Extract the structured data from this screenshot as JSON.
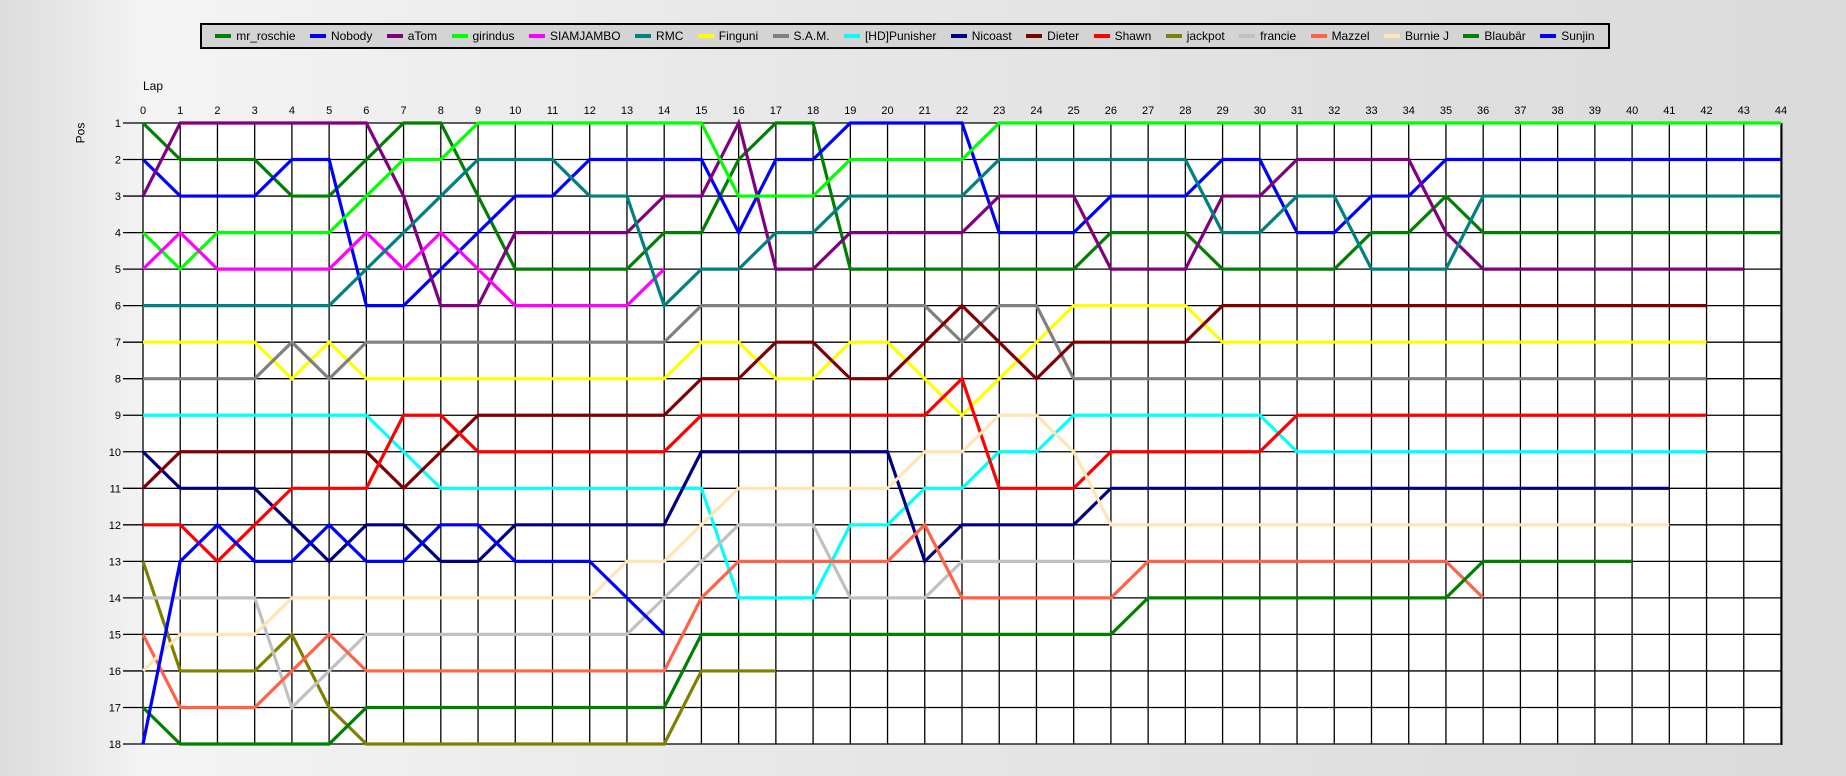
{
  "chart_data": {
    "type": "line",
    "xlabel": "Lap",
    "ylabel": "Pos",
    "x_ticks": [
      0,
      1,
      2,
      3,
      4,
      5,
      6,
      7,
      8,
      9,
      10,
      11,
      12,
      13,
      14,
      15,
      16,
      17,
      18,
      19,
      20,
      21,
      22,
      23,
      24,
      25,
      26,
      27,
      28,
      29,
      30,
      31,
      32,
      33,
      34,
      35,
      36,
      37,
      38,
      39,
      40,
      41,
      42,
      43,
      44
    ],
    "y_ticks": [
      1,
      2,
      3,
      4,
      5,
      6,
      7,
      8,
      9,
      10,
      11,
      12,
      13,
      14,
      15,
      16,
      17,
      18
    ],
    "xlim": [
      0,
      44
    ],
    "ylim": [
      18,
      1
    ],
    "y_inverted": true,
    "grid": true,
    "legend_position": "top",
    "series": [
      {
        "name": "mr_roschie",
        "color": "#008000",
        "values": [
          1,
          2,
          2,
          2,
          3,
          3,
          2,
          1,
          1,
          3,
          5,
          5,
          5,
          5,
          4,
          4,
          2,
          1,
          1,
          5,
          5,
          5,
          5,
          5,
          5,
          5,
          4,
          4,
          4,
          5,
          5,
          5,
          5,
          4,
          4,
          3,
          4,
          4,
          4,
          4,
          4,
          4,
          4,
          4,
          4
        ]
      },
      {
        "name": "Nobody",
        "color": "#0000FF",
        "values": [
          2,
          3,
          3,
          3,
          2,
          2,
          6,
          6,
          5,
          4,
          3,
          3,
          2,
          2,
          2,
          2,
          4,
          2,
          2,
          1,
          1,
          1,
          1,
          4,
          4,
          4,
          3,
          3,
          3,
          2,
          2,
          4,
          4,
          3,
          3,
          2,
          2,
          2,
          2,
          2,
          2,
          2,
          2,
          2,
          2
        ]
      },
      {
        "name": "aTom",
        "color": "#800080",
        "values": [
          3,
          1,
          1,
          1,
          1,
          1,
          1,
          3,
          6,
          6,
          4,
          4,
          4,
          4,
          3,
          3,
          1,
          5,
          5,
          4,
          4,
          4,
          4,
          3,
          3,
          3,
          5,
          5,
          5,
          3,
          3,
          2,
          2,
          2,
          2,
          4,
          5,
          5,
          5,
          5,
          5,
          5,
          5,
          5
        ]
      },
      {
        "name": "girindus",
        "color": "#00FF00",
        "values": [
          4,
          5,
          4,
          4,
          4,
          4,
          3,
          2,
          2,
          1,
          1,
          1,
          1,
          1,
          1,
          1,
          3,
          3,
          3,
          2,
          2,
          2,
          2,
          1,
          1,
          1,
          1,
          1,
          1,
          1,
          1,
          1,
          1,
          1,
          1,
          1,
          1,
          1,
          1,
          1,
          1,
          1,
          1,
          1,
          1
        ]
      },
      {
        "name": "SIAMJAMBO",
        "color": "#FF00FF",
        "values": [
          5,
          4,
          5,
          5,
          5,
          5,
          4,
          5,
          4,
          5,
          6,
          6,
          6,
          6,
          5
        ]
      },
      {
        "name": "RMC",
        "color": "#008080",
        "values": [
          6,
          6,
          6,
          6,
          6,
          6,
          5,
          4,
          3,
          2,
          2,
          2,
          3,
          3,
          6,
          5,
          5,
          4,
          4,
          3,
          3,
          3,
          3,
          2,
          2,
          2,
          2,
          2,
          2,
          4,
          4,
          3,
          3,
          5,
          5,
          5,
          3,
          3,
          3,
          3,
          3,
          3,
          3,
          3,
          3
        ]
      },
      {
        "name": "Finguni",
        "color": "#FFFF00",
        "values": [
          7,
          7,
          7,
          7,
          8,
          7,
          8,
          8,
          8,
          8,
          8,
          8,
          8,
          8,
          8,
          7,
          7,
          8,
          8,
          7,
          7,
          8,
          9,
          8,
          7,
          6,
          6,
          6,
          6,
          7,
          7,
          7,
          7,
          7,
          7,
          7,
          7,
          7,
          7,
          7,
          7,
          7,
          7
        ]
      },
      {
        "name": "S.A.M.",
        "color": "#808080",
        "values": [
          8,
          8,
          8,
          8,
          7,
          8,
          7,
          7,
          7,
          7,
          7,
          7,
          7,
          7,
          7,
          6,
          6,
          6,
          6,
          6,
          6,
          6,
          7,
          6,
          6,
          8,
          8,
          8,
          8,
          8,
          8,
          8,
          8,
          8,
          8,
          8,
          8,
          8,
          8,
          8,
          8,
          8,
          8
        ]
      },
      {
        "name": "[HD]Punisher",
        "color": "#00FFFF",
        "values": [
          9,
          9,
          9,
          9,
          9,
          9,
          9,
          10,
          11,
          11,
          11,
          11,
          11,
          11,
          11,
          11,
          14,
          14,
          14,
          12,
          12,
          11,
          11,
          10,
          10,
          9,
          9,
          9,
          9,
          9,
          9,
          10,
          10,
          10,
          10,
          10,
          10,
          10,
          10,
          10,
          10,
          10,
          10
        ]
      },
      {
        "name": "Nicoast",
        "color": "#000080",
        "values": [
          10,
          11,
          11,
          11,
          12,
          13,
          12,
          12,
          13,
          13,
          12,
          12,
          12,
          12,
          12,
          10,
          10,
          10,
          10,
          10,
          10,
          13,
          12,
          12,
          12,
          12,
          11,
          11,
          11,
          11,
          11,
          11,
          11,
          11,
          11,
          11,
          11,
          11,
          11,
          11,
          11,
          11
        ]
      },
      {
        "name": "Dieter",
        "color": "#800000",
        "values": [
          11,
          10,
          10,
          10,
          10,
          10,
          10,
          11,
          10,
          9,
          9,
          9,
          9,
          9,
          9,
          8,
          8,
          7,
          7,
          8,
          8,
          7,
          6,
          7,
          8,
          7,
          7,
          7,
          7,
          6,
          6,
          6,
          6,
          6,
          6,
          6,
          6,
          6,
          6,
          6,
          6,
          6,
          6
        ]
      },
      {
        "name": "Shawn",
        "color": "#FF0000",
        "values": [
          12,
          12,
          13,
          12,
          11,
          11,
          11,
          9,
          9,
          10,
          10,
          10,
          10,
          10,
          10,
          9,
          9,
          9,
          9,
          9,
          9,
          9,
          8,
          11,
          11,
          11,
          10,
          10,
          10,
          10,
          10,
          9,
          9,
          9,
          9,
          9,
          9,
          9,
          9,
          9,
          9,
          9,
          9
        ]
      },
      {
        "name": "jackpot",
        "color": "#808000",
        "values": [
          13,
          16,
          16,
          16,
          15,
          17,
          18,
          18,
          18,
          18,
          18,
          18,
          18,
          18,
          18,
          16,
          16,
          16
        ]
      },
      {
        "name": "francie",
        "color": "#C0C0C0",
        "values": [
          14,
          14,
          14,
          14,
          17,
          16,
          15,
          15,
          15,
          15,
          15,
          15,
          15,
          15,
          14,
          13,
          12,
          12,
          12,
          14,
          14,
          14,
          13,
          13,
          13,
          13,
          13
        ]
      },
      {
        "name": "Mazzel",
        "color": "#FF6347",
        "values": [
          15,
          17,
          17,
          17,
          16,
          15,
          16,
          16,
          16,
          16,
          16,
          16,
          16,
          16,
          16,
          14,
          13,
          13,
          13,
          13,
          13,
          12,
          14,
          14,
          14,
          14,
          14,
          13,
          13,
          13,
          13,
          13,
          13,
          13,
          13,
          13,
          14
        ]
      },
      {
        "name": "Burnie J",
        "color": "#FFE4B5",
        "values": [
          16,
          15,
          15,
          15,
          14,
          14,
          14,
          14,
          14,
          14,
          14,
          14,
          14,
          13,
          13,
          12,
          11,
          11,
          11,
          11,
          11,
          10,
          10,
          9,
          9,
          10,
          12,
          12,
          12,
          12,
          12,
          12,
          12,
          12,
          12,
          12,
          12,
          12,
          12,
          12,
          12,
          12
        ]
      },
      {
        "name": "Blaubär",
        "color": "#008000",
        "values": [
          17,
          18,
          18,
          18,
          18,
          18,
          17,
          17,
          17,
          17,
          17,
          17,
          17,
          17,
          17,
          15,
          15,
          15,
          15,
          15,
          15,
          15,
          15,
          15,
          15,
          15,
          15,
          14,
          14,
          14,
          14,
          14,
          14,
          14,
          14,
          14,
          13,
          13,
          13,
          13,
          13
        ]
      },
      {
        "name": "Sunjin",
        "color": "#0000FF",
        "values": [
          18,
          13,
          12,
          13,
          13,
          12,
          13,
          13,
          12,
          12,
          13,
          13,
          13,
          14,
          15
        ]
      }
    ]
  }
}
